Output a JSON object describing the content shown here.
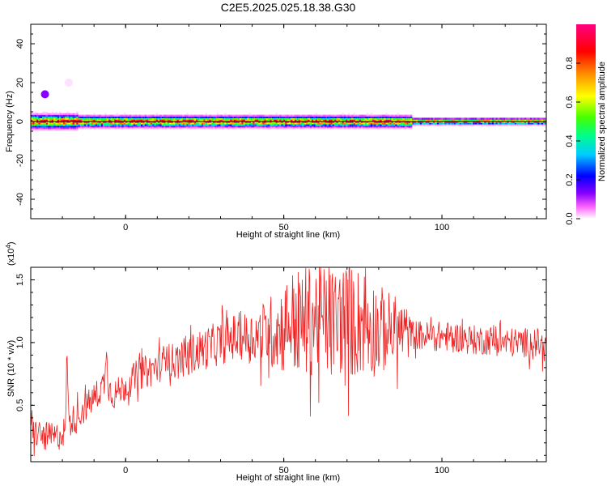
{
  "figure_title": "C2E5.2025.025.18.38.G30",
  "colors": {
    "snr_line": "#ee2222",
    "frame": "#000000",
    "background": "#ffffff",
    "colormap": [
      "#ffffff",
      "#ff66ff",
      "#8800ff",
      "#0000ff",
      "#00ccff",
      "#00ff88",
      "#44ff00",
      "#ffff00",
      "#ff8800",
      "#ff0000",
      "#ff0080"
    ]
  },
  "chart_data": [
    {
      "type": "heatmap",
      "title": "C2E5.2025.025.18.38.G30",
      "xlabel": "Height of straight line (km)",
      "ylabel": "Frequency (Hz)",
      "xlim": [
        -30,
        133
      ],
      "ylim": [
        -50,
        50
      ],
      "x_ticks": [
        "0",
        "50",
        "100"
      ],
      "x_tick_values": [
        0,
        50,
        100
      ],
      "y_ticks": [
        "40",
        "20",
        "0",
        "-20",
        "-40"
      ],
      "y_tick_values": [
        40,
        20,
        0,
        -20,
        -40
      ],
      "reference_line_frequency": 0,
      "dominant_frequency_hz": 0,
      "colorbar": {
        "label": "Normalized spectral amplitude",
        "range": [
          0,
          1
        ],
        "ticks": [
          "0.0",
          "0.2",
          "0.4",
          "0.6",
          "0.8"
        ],
        "tick_values": [
          0.0,
          0.2,
          0.4,
          0.6,
          0.8
        ]
      },
      "isolated_blobs": [
        {
          "x": -25.5,
          "frequency": 14,
          "amplitude": 0.2
        },
        {
          "x": -18,
          "frequency": 20,
          "amplitude": 0.02
        }
      ]
    },
    {
      "type": "line",
      "xlabel": "Height of straight line (km)",
      "ylabel": "SNR (10 * v/v)",
      "y_multiplier": "(x10",
      "y_multiplier_exp": "4",
      "y_multiplier_close": ")",
      "xlim": [
        -30,
        133
      ],
      "ylim": [
        0.05,
        1.6
      ],
      "x_ticks": [
        "0",
        "50",
        "100"
      ],
      "x_tick_values": [
        0,
        50,
        100
      ],
      "y_ticks": [
        "1.5",
        "1.0",
        "0.5"
      ],
      "y_tick_values": [
        1.5,
        1.0,
        0.5
      ],
      "series": [
        {
          "x": [
            -30,
            -26,
            -22,
            -19,
            -18.5,
            -18,
            -16,
            -12,
            -8,
            -6.5,
            -6,
            -5.5,
            -4,
            0,
            4,
            8,
            12.5,
            13,
            13.5,
            16,
            20,
            25,
            30,
            35,
            40,
            45,
            48,
            50,
            52,
            55,
            58,
            60,
            62,
            65,
            68,
            70,
            72,
            75,
            78,
            80,
            85,
            90,
            95,
            100,
            105,
            110,
            115,
            120,
            125,
            130,
            133
          ],
          "values": [
            0.3,
            0.25,
            0.24,
            0.3,
            1.0,
            0.35,
            0.4,
            0.5,
            0.62,
            0.7,
            1.03,
            0.65,
            0.58,
            0.65,
            0.75,
            0.78,
            0.85,
            1.05,
            0.85,
            0.85,
            0.9,
            0.95,
            1.0,
            1.05,
            1.05,
            1.08,
            1.1,
            1.12,
            1.18,
            1.15,
            1.17,
            1.2,
            1.18,
            1.15,
            1.18,
            1.2,
            1.15,
            1.18,
            1.12,
            1.1,
            1.1,
            1.07,
            1.05,
            1.05,
            1.04,
            1.02,
            1.02,
            1.0,
            1.0,
            1.0,
            0.95
          ]
        }
      ]
    }
  ]
}
